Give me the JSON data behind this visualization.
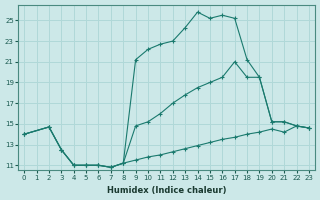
{
  "xlabel": "Humidex (Indice chaleur)",
  "bg_color": "#cce8e8",
  "grid_color": "#b0d8d8",
  "line_color": "#1a7a6e",
  "xlim": [
    -0.5,
    23.5
  ],
  "ylim": [
    10.5,
    26.5
  ],
  "xticks": [
    0,
    1,
    2,
    3,
    4,
    5,
    6,
    7,
    8,
    9,
    10,
    11,
    12,
    13,
    14,
    15,
    16,
    17,
    18,
    19,
    20,
    21,
    22,
    23
  ],
  "yticks": [
    11,
    13,
    15,
    17,
    19,
    21,
    23,
    25
  ],
  "line1_x": [
    0,
    2,
    3,
    4,
    5,
    6,
    7,
    8,
    9,
    10,
    11,
    12,
    13,
    14,
    15,
    16,
    17,
    18,
    19,
    20,
    21,
    22,
    23
  ],
  "line1_y": [
    14.0,
    14.7,
    12.5,
    11.0,
    11.0,
    11.0,
    10.8,
    11.2,
    21.2,
    22.2,
    22.7,
    23.0,
    24.3,
    25.8,
    25.2,
    25.5,
    25.2,
    21.2,
    19.5,
    15.2,
    15.2,
    14.8,
    14.6
  ],
  "line2_x": [
    0,
    2,
    3,
    4,
    5,
    6,
    7,
    8,
    9,
    10,
    11,
    12,
    13,
    14,
    15,
    16,
    17,
    18,
    19,
    20,
    21,
    22,
    23
  ],
  "line2_y": [
    14.0,
    14.7,
    12.5,
    11.0,
    11.0,
    11.0,
    10.8,
    11.2,
    14.8,
    15.2,
    16.0,
    17.0,
    17.8,
    18.5,
    19.0,
    19.5,
    21.0,
    19.5,
    19.5,
    15.2,
    15.2,
    14.8,
    14.6
  ],
  "line3_x": [
    0,
    2,
    3,
    4,
    5,
    6,
    7,
    8,
    9,
    10,
    11,
    12,
    13,
    14,
    15,
    16,
    17,
    18,
    19,
    20,
    21,
    22,
    23
  ],
  "line3_y": [
    14.0,
    14.7,
    12.5,
    11.0,
    11.0,
    11.0,
    10.8,
    11.2,
    11.5,
    11.8,
    12.0,
    12.3,
    12.6,
    12.9,
    13.2,
    13.5,
    13.7,
    14.0,
    14.2,
    14.5,
    14.2,
    14.8,
    14.6
  ]
}
